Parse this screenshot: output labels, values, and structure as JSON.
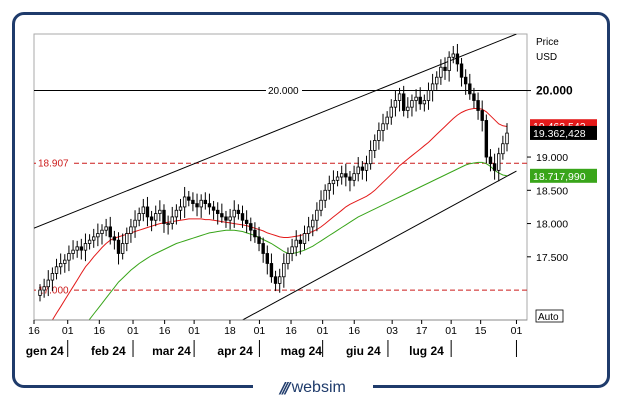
{
  "brand": {
    "name": "websim",
    "mark_icon": "websim-logo-icon"
  },
  "chart_data": {
    "type": "candlestick",
    "price_header": "Price",
    "currency_label": "USD",
    "scale_label": "Auto",
    "ylim": [
      16.55,
      20.85
    ],
    "y_ticks": [
      {
        "value": 17.5,
        "label": "17.500"
      },
      {
        "value": 18.0,
        "label": "18.000"
      },
      {
        "value": 18.5,
        "label": "18.500"
      },
      {
        "value": 19.0,
        "label": "19.000"
      },
      {
        "value": 20.0,
        "label": "20.000"
      }
    ],
    "x_days": [
      "2023-12-16",
      "2024-08-06"
    ],
    "x_ticks": [
      {
        "date": "2023-12-16",
        "label": "16"
      },
      {
        "date": "2024-01-01",
        "label": "01"
      },
      {
        "date": "2024-01-16",
        "label": "16"
      },
      {
        "date": "2024-02-01",
        "label": "01"
      },
      {
        "date": "2024-02-16",
        "label": "16"
      },
      {
        "date": "2024-03-01",
        "label": "01"
      },
      {
        "date": "2024-03-18",
        "label": "18"
      },
      {
        "date": "2024-04-01",
        "label": "01"
      },
      {
        "date": "2024-04-16",
        "label": "16"
      },
      {
        "date": "2024-05-01",
        "label": "01"
      },
      {
        "date": "2024-05-16",
        "label": "16"
      },
      {
        "date": "2024-06-03",
        "label": "03"
      },
      {
        "date": "2024-06-17",
        "label": "17"
      },
      {
        "date": "2024-07-01",
        "label": "01"
      },
      {
        "date": "2024-07-15",
        "label": "15"
      },
      {
        "date": "2024-08-01",
        "label": "01"
      }
    ],
    "months": [
      {
        "start": "2024-01-01",
        "label": "gen 24"
      },
      {
        "start": "2024-02-01",
        "label": "feb 24"
      },
      {
        "start": "2024-03-01",
        "label": "mar 24"
      },
      {
        "start": "2024-04-01",
        "label": "apr 24"
      },
      {
        "start": "2024-05-01",
        "label": "mag 24"
      },
      {
        "start": "2024-06-01",
        "label": "giu 24"
      },
      {
        "start": "2024-07-01",
        "label": "lug 24"
      }
    ],
    "horizontal_levels": [
      {
        "value": 20.0,
        "label": "20.000",
        "style": "solid",
        "color": "#000000"
      },
      {
        "value": 18.907,
        "label": "18.907",
        "style": "dashed",
        "color": "#cc1b1b"
      },
      {
        "value": 17.0,
        "label": "17.000",
        "style": "dashed",
        "color": "#cc1b1b"
      }
    ],
    "trend_channel": [
      {
        "from": [
          "2023-12-16",
          17.93
        ],
        "to": [
          "2024-08-01",
          20.85
        ]
      },
      {
        "from": [
          "2024-03-24",
          16.55
        ],
        "to": [
          "2024-08-01",
          18.79
        ]
      }
    ],
    "price_badges": [
      {
        "value": 19.463542,
        "label": "19.463,542",
        "color": "#e31a1a",
        "text_color": "#ffffff"
      },
      {
        "value": 19.362428,
        "label": "19.362,428",
        "color": "#000000",
        "text_color": "#ffffff"
      },
      {
        "value": 18.71799,
        "label": "18.717,990",
        "color": "#39a51a",
        "text_color": "#ffffff"
      }
    ],
    "colors": {
      "candle": "#000000",
      "ma_short": "#e31a1a",
      "ma_long": "#39a51a",
      "grid": "#cccccc",
      "border": "#1f3b6b"
    },
    "closes": [
      17.0,
      17.05,
      17.15,
      17.25,
      17.35,
      17.4,
      17.45,
      17.55,
      17.6,
      17.65,
      17.6,
      17.7,
      17.75,
      17.8,
      17.85,
      17.9,
      17.95,
      17.8,
      17.75,
      17.55,
      17.7,
      17.85,
      17.95,
      18.05,
      18.15,
      18.25,
      18.1,
      18.05,
      18.15,
      18.2,
      18.0,
      18.0,
      18.1,
      18.2,
      18.25,
      18.4,
      18.35,
      18.3,
      18.25,
      18.35,
      18.3,
      18.25,
      18.2,
      18.15,
      18.1,
      18.05,
      18.1,
      18.2,
      18.15,
      18.05,
      18.0,
      17.9,
      17.8,
      17.7,
      17.55,
      17.4,
      17.2,
      17.1,
      17.2,
      17.4,
      17.55,
      17.65,
      17.75,
      17.7,
      17.85,
      17.95,
      18.05,
      18.2,
      18.35,
      18.5,
      18.6,
      18.65,
      18.7,
      18.75,
      18.7,
      18.65,
      18.75,
      18.85,
      18.8,
      18.9,
      19.1,
      19.25,
      19.4,
      19.5,
      19.6,
      19.75,
      19.85,
      19.95,
      19.7,
      19.75,
      19.85,
      19.9,
      19.8,
      19.85,
      20.0,
      20.1,
      20.2,
      20.35,
      20.3,
      20.5,
      20.55,
      20.4,
      20.2,
      20.1,
      19.95,
      19.85,
      19.7,
      19.55,
      19.0,
      18.9,
      18.8,
      19.05,
      19.2,
      19.36
    ],
    "ma_short": [
      16.25,
      16.35,
      16.45,
      16.55,
      16.65,
      16.75,
      16.85,
      16.95,
      17.05,
      17.15,
      17.25,
      17.35,
      17.42,
      17.5,
      17.57,
      17.64,
      17.7,
      17.75,
      17.78,
      17.8,
      17.82,
      17.84,
      17.86,
      17.88,
      17.9,
      17.92,
      17.94,
      17.96,
      17.98,
      18.0,
      18.01,
      18.02,
      18.03,
      18.04,
      18.05,
      18.06,
      18.07,
      18.07,
      18.07,
      18.07,
      18.06,
      18.06,
      18.05,
      18.04,
      18.03,
      18.02,
      18.01,
      18.0,
      17.99,
      17.98,
      17.97,
      17.95,
      17.93,
      17.91,
      17.89,
      17.86,
      17.84,
      17.82,
      17.8,
      17.79,
      17.79,
      17.8,
      17.81,
      17.82,
      17.84,
      17.86,
      17.88,
      17.91,
      17.95,
      18.0,
      18.05,
      18.1,
      18.15,
      18.2,
      18.25,
      18.29,
      18.32,
      18.35,
      18.38,
      18.41,
      18.45,
      18.5,
      18.56,
      18.62,
      18.68,
      18.74,
      18.8,
      18.87,
      18.92,
      18.97,
      19.02,
      19.07,
      19.12,
      19.17,
      19.22,
      19.28,
      19.34,
      19.4,
      19.46,
      19.52,
      19.58,
      19.63,
      19.67,
      19.7,
      19.72,
      19.73,
      19.73,
      19.72,
      19.68,
      19.62,
      19.56,
      19.5,
      19.47,
      19.46
    ],
    "ma_long": [
      15.6,
      15.68,
      15.76,
      15.84,
      15.92,
      16.0,
      16.08,
      16.16,
      16.24,
      16.32,
      16.4,
      16.48,
      16.56,
      16.64,
      16.72,
      16.8,
      16.88,
      16.96,
      17.04,
      17.12,
      17.18,
      17.24,
      17.3,
      17.35,
      17.4,
      17.44,
      17.48,
      17.52,
      17.55,
      17.58,
      17.61,
      17.64,
      17.67,
      17.7,
      17.72,
      17.74,
      17.76,
      17.78,
      17.8,
      17.82,
      17.84,
      17.86,
      17.87,
      17.88,
      17.89,
      17.9,
      17.9,
      17.9,
      17.89,
      17.88,
      17.86,
      17.84,
      17.82,
      17.79,
      17.76,
      17.73,
      17.7,
      17.66,
      17.62,
      17.58,
      17.55,
      17.55,
      17.56,
      17.58,
      17.6,
      17.63,
      17.66,
      17.7,
      17.74,
      17.78,
      17.82,
      17.86,
      17.9,
      17.94,
      17.98,
      18.02,
      18.06,
      18.1,
      18.13,
      18.16,
      18.19,
      18.22,
      18.25,
      18.28,
      18.31,
      18.34,
      18.37,
      18.4,
      18.43,
      18.46,
      18.49,
      18.52,
      18.55,
      18.58,
      18.61,
      18.64,
      18.67,
      18.7,
      18.73,
      18.76,
      18.79,
      18.82,
      18.85,
      18.88,
      18.9,
      18.91,
      18.92,
      18.92,
      18.9,
      18.86,
      18.8,
      18.76,
      18.73,
      18.72
    ]
  }
}
